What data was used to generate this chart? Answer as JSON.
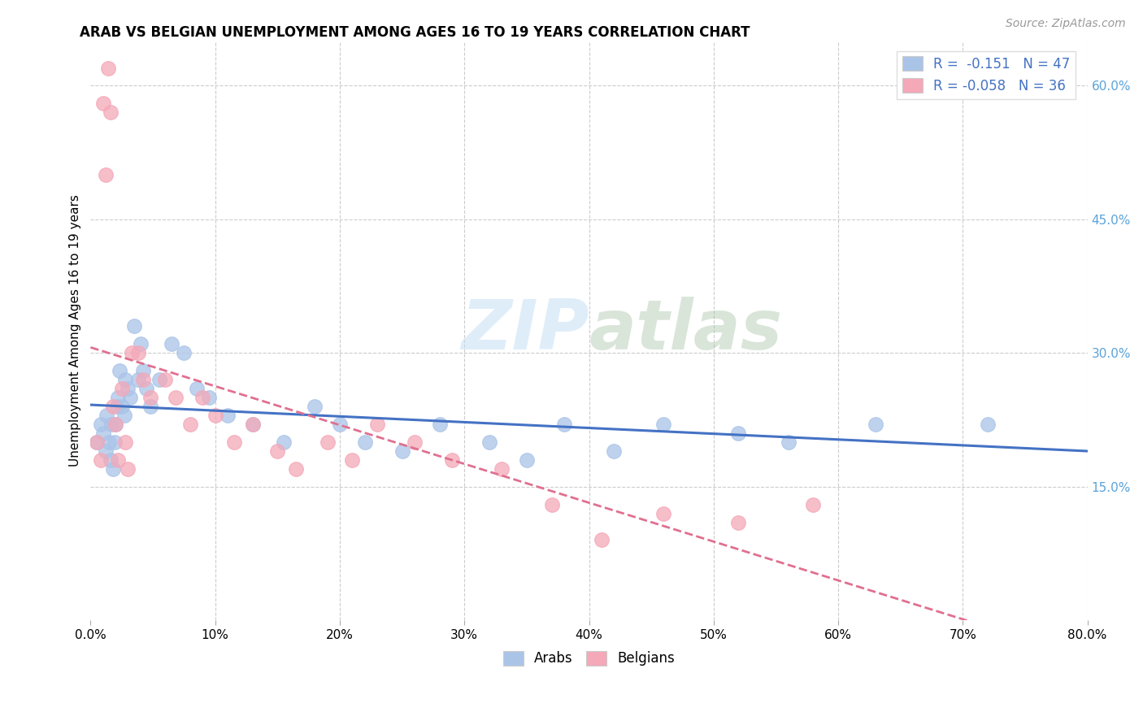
{
  "title": "ARAB VS BELGIAN UNEMPLOYMENT AMONG AGES 16 TO 19 YEARS CORRELATION CHART",
  "source": "Source: ZipAtlas.com",
  "ylabel": "Unemployment Among Ages 16 to 19 years",
  "xlim": [
    0.0,
    0.8
  ],
  "ylim": [
    0.0,
    0.65
  ],
  "xticks": [
    0.0,
    0.1,
    0.2,
    0.3,
    0.4,
    0.5,
    0.6,
    0.7,
    0.8
  ],
  "yticks_right": [
    0.15,
    0.3,
    0.45,
    0.6
  ],
  "background_color": "#ffffff",
  "grid_color": "#cccccc",
  "arab_color": "#aac4e8",
  "belgian_color": "#f4a8b8",
  "arab_line_color": "#4472c4",
  "belgian_line_color": "#e07090",
  "arab_R": "-0.151",
  "arab_N": "47",
  "belgian_R": "-0.058",
  "belgian_N": "36",
  "legend_label_arab": "Arabs",
  "legend_label_belgian": "Belgians",
  "watermark_zip": "ZIP",
  "watermark_atlas": "atlas",
  "arab_x": [
    0.005,
    0.008,
    0.01,
    0.012,
    0.013,
    0.015,
    0.016,
    0.017,
    0.018,
    0.019,
    0.02,
    0.021,
    0.022,
    0.023,
    0.025,
    0.027,
    0.028,
    0.03,
    0.032,
    0.035,
    0.038,
    0.04,
    0.042,
    0.045,
    0.048,
    0.055,
    0.065,
    0.075,
    0.085,
    0.095,
    0.11,
    0.13,
    0.155,
    0.18,
    0.2,
    0.22,
    0.25,
    0.28,
    0.32,
    0.35,
    0.38,
    0.42,
    0.46,
    0.52,
    0.56,
    0.63,
    0.72
  ],
  "arab_y": [
    0.2,
    0.22,
    0.21,
    0.19,
    0.23,
    0.2,
    0.18,
    0.22,
    0.17,
    0.2,
    0.22,
    0.24,
    0.25,
    0.28,
    0.24,
    0.23,
    0.27,
    0.26,
    0.25,
    0.33,
    0.27,
    0.31,
    0.28,
    0.26,
    0.24,
    0.27,
    0.31,
    0.3,
    0.26,
    0.25,
    0.23,
    0.22,
    0.2,
    0.24,
    0.22,
    0.2,
    0.19,
    0.22,
    0.2,
    0.18,
    0.22,
    0.19,
    0.22,
    0.21,
    0.2,
    0.22,
    0.22
  ],
  "belgian_x": [
    0.005,
    0.008,
    0.01,
    0.012,
    0.014,
    0.016,
    0.018,
    0.02,
    0.022,
    0.025,
    0.028,
    0.03,
    0.033,
    0.038,
    0.042,
    0.048,
    0.06,
    0.068,
    0.08,
    0.09,
    0.1,
    0.115,
    0.13,
    0.15,
    0.165,
    0.19,
    0.21,
    0.23,
    0.26,
    0.29,
    0.33,
    0.37,
    0.41,
    0.46,
    0.52,
    0.58
  ],
  "belgian_y": [
    0.2,
    0.18,
    0.58,
    0.5,
    0.62,
    0.57,
    0.24,
    0.22,
    0.18,
    0.26,
    0.2,
    0.17,
    0.3,
    0.3,
    0.27,
    0.25,
    0.27,
    0.25,
    0.22,
    0.25,
    0.23,
    0.2,
    0.22,
    0.19,
    0.17,
    0.2,
    0.18,
    0.22,
    0.2,
    0.18,
    0.17,
    0.13,
    0.09,
    0.12,
    0.11,
    0.13
  ]
}
